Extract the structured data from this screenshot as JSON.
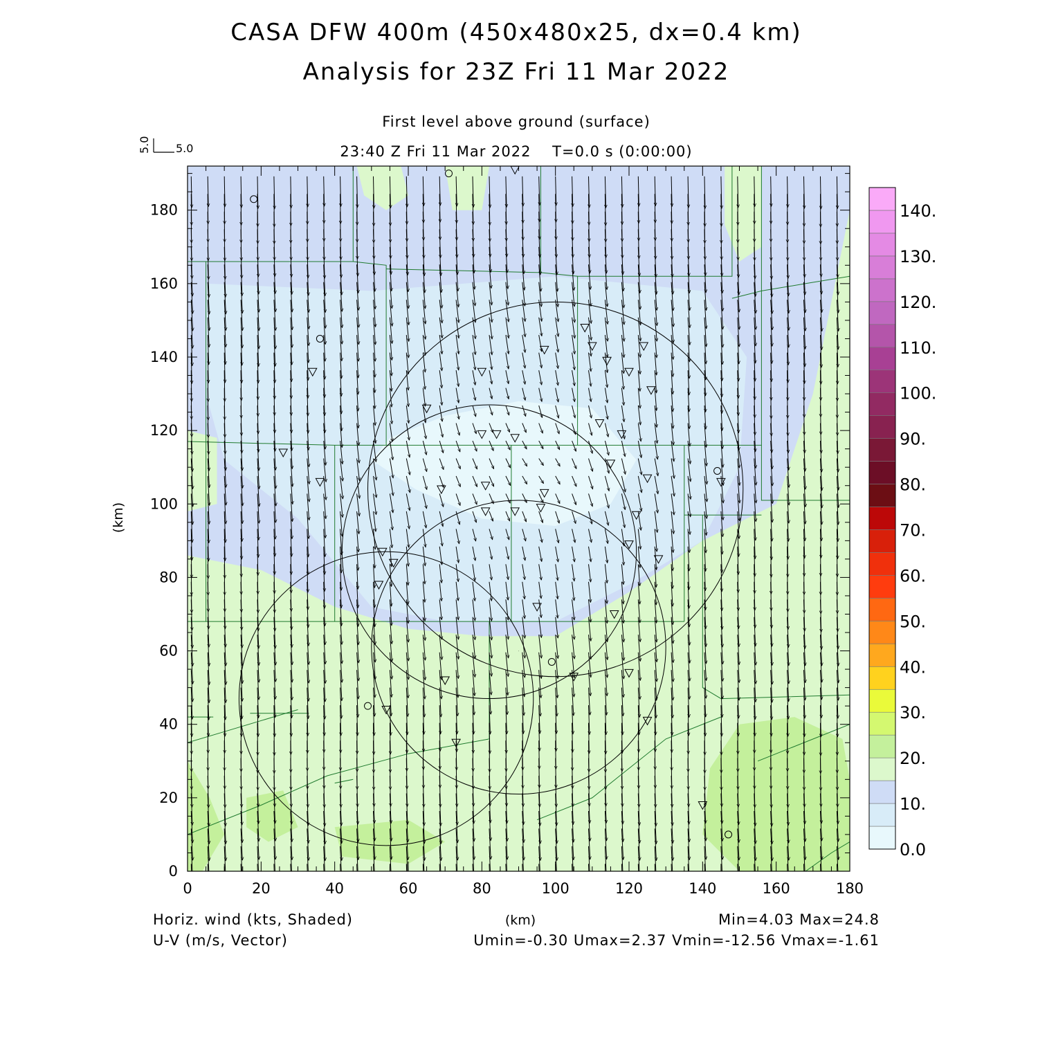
{
  "title_line1": "CASA DFW 400m (450x480x25, dx=0.4 km)",
  "title_line2": "Analysis for 23Z Fri 11 Mar 2022",
  "subtitle_level": "First level above ground (surface)",
  "subtitle_time": "23:40 Z Fri 11 Mar 2022    T=0.0 s (0:00:00)",
  "vector_key": {
    "u_label": "5.0",
    "v_label": "5.0"
  },
  "footer": {
    "left_line1": "Horiz. wind (kts, Shaded)",
    "left_line2": "U-V (m/s, Vector)",
    "xunit": "(km)",
    "minmax": "Min=4.03 Max=24.8",
    "uv_stats": "Umin=-0.30 Umax=2.37 Vmin=-12.56 Vmax=-1.61"
  },
  "colors": {
    "county_lines": "#1f7a2e",
    "radar_rings": "#000000",
    "background": "#ffffff"
  },
  "chart_data": {
    "type": "heatmap",
    "field": "Horiz. wind (kts, Shaded)",
    "vector_field": "U-V (m/s, Vector)",
    "xlabel": "(km)",
    "ylabel": "(km)",
    "xlim": [
      0,
      180
    ],
    "ylim": [
      0,
      192
    ],
    "x_ticks": [
      0,
      20,
      40,
      60,
      80,
      100,
      120,
      140,
      160,
      180
    ],
    "y_ticks": [
      0,
      20,
      40,
      60,
      80,
      100,
      120,
      140,
      160,
      180
    ],
    "stats": {
      "min": 4.03,
      "max": 24.8,
      "umin": -0.3,
      "umax": 2.37,
      "vmin": -12.56,
      "vmax": -1.61
    },
    "colorbar": {
      "labels": [
        "0.0",
        "10.",
        "20.",
        "30.",
        "40.",
        "50.",
        "60.",
        "70.",
        "80.",
        "90.",
        "100.",
        "110.",
        "120.",
        "130.",
        "140."
      ],
      "label_values": [
        0,
        10,
        20,
        30,
        40,
        50,
        60,
        70,
        80,
        90,
        100,
        110,
        120,
        130,
        140
      ],
      "bins": [
        {
          "lo": 0,
          "hi": 5,
          "color": "#e8f8fc"
        },
        {
          "lo": 5,
          "hi": 10,
          "color": "#d8ecf8"
        },
        {
          "lo": 10,
          "hi": 15,
          "color": "#cfdcf6"
        },
        {
          "lo": 15,
          "hi": 20,
          "color": "#dcf8cc"
        },
        {
          "lo": 20,
          "hi": 25,
          "color": "#c4f09c"
        },
        {
          "lo": 25,
          "hi": 30,
          "color": "#d4f870"
        },
        {
          "lo": 30,
          "hi": 35,
          "color": "#eafa3a"
        },
        {
          "lo": 35,
          "hi": 40,
          "color": "#ffd21e"
        },
        {
          "lo": 40,
          "hi": 45,
          "color": "#ffa81e"
        },
        {
          "lo": 45,
          "hi": 50,
          "color": "#ff8818"
        },
        {
          "lo": 50,
          "hi": 55,
          "color": "#ff6812"
        },
        {
          "lo": 55,
          "hi": 60,
          "color": "#ff3c0e"
        },
        {
          "lo": 60,
          "hi": 65,
          "color": "#f0300c"
        },
        {
          "lo": 65,
          "hi": 70,
          "color": "#d8200a"
        },
        {
          "lo": 70,
          "hi": 75,
          "color": "#bc0808"
        },
        {
          "lo": 75,
          "hi": 80,
          "color": "#6c0e14"
        },
        {
          "lo": 80,
          "hi": 85,
          "color": "#6c0e26"
        },
        {
          "lo": 85,
          "hi": 90,
          "color": "#7a1836"
        },
        {
          "lo": 90,
          "hi": 95,
          "color": "#882250"
        },
        {
          "lo": 95,
          "hi": 100,
          "color": "#922a62"
        },
        {
          "lo": 100,
          "hi": 105,
          "color": "#9c3478"
        },
        {
          "lo": 105,
          "hi": 110,
          "color": "#a84094"
        },
        {
          "lo": 110,
          "hi": 115,
          "color": "#b455aa"
        },
        {
          "lo": 115,
          "hi": 120,
          "color": "#c068c0"
        },
        {
          "lo": 120,
          "hi": 125,
          "color": "#cc72cc"
        },
        {
          "lo": 125,
          "hi": 130,
          "color": "#d87ed8"
        },
        {
          "lo": 130,
          "hi": 135,
          "color": "#e48ae4"
        },
        {
          "lo": 135,
          "hi": 140,
          "color": "#f098f0"
        },
        {
          "lo": 140,
          "hi": 145,
          "color": "#faaaf8"
        }
      ]
    },
    "shaded_regions": [
      {
        "level": 10,
        "color": "#cfdcf6",
        "points": [
          [
            0,
            192
          ],
          [
            180,
            192
          ],
          [
            180,
            180
          ],
          [
            176,
            160
          ],
          [
            170,
            130
          ],
          [
            160,
            100
          ],
          [
            140,
            90
          ],
          [
            120,
            76
          ],
          [
            100,
            64
          ],
          [
            80,
            64
          ],
          [
            60,
            66
          ],
          [
            40,
            72
          ],
          [
            20,
            82
          ],
          [
            0,
            86
          ]
        ]
      },
      {
        "level": 5,
        "color": "#d8ecf8",
        "points": [
          [
            5,
            160
          ],
          [
            50,
            158
          ],
          [
            100,
            162
          ],
          [
            140,
            158
          ],
          [
            152,
            140
          ],
          [
            150,
            110
          ],
          [
            140,
            90
          ],
          [
            120,
            78
          ],
          [
            100,
            68
          ],
          [
            70,
            68
          ],
          [
            50,
            72
          ],
          [
            40,
            84
          ],
          [
            30,
            96
          ],
          [
            10,
            112
          ],
          [
            5,
            130
          ]
        ]
      },
      {
        "level": 0,
        "color": "#e8f8fc",
        "points": [
          [
            55,
            118
          ],
          [
            70,
            124
          ],
          [
            90,
            128
          ],
          [
            110,
            126
          ],
          [
            122,
            112
          ],
          [
            115,
            100
          ],
          [
            100,
            94
          ],
          [
            80,
            96
          ],
          [
            62,
            104
          ],
          [
            50,
            112
          ]
        ]
      },
      {
        "level": 15,
        "color": "#dcf8cc",
        "points": [
          [
            46,
            192
          ],
          [
            58,
            192
          ],
          [
            60,
            184
          ],
          [
            54,
            180
          ],
          [
            48,
            184
          ]
        ]
      },
      {
        "level": 15,
        "color": "#dcf8cc",
        "points": [
          [
            70,
            192
          ],
          [
            82,
            192
          ],
          [
            80,
            180
          ],
          [
            72,
            180
          ]
        ]
      },
      {
        "level": 15,
        "color": "#dcf8cc",
        "points": [
          [
            146,
            192
          ],
          [
            156,
            192
          ],
          [
            156,
            170
          ],
          [
            150,
            166
          ],
          [
            146,
            176
          ]
        ]
      },
      {
        "level": 15,
        "color": "#dcf8cc",
        "points": [
          [
            0,
            120
          ],
          [
            8,
            118
          ],
          [
            8,
            100
          ],
          [
            0,
            98
          ]
        ]
      },
      {
        "level": 20,
        "color": "#c4f09c",
        "points": [
          [
            0,
            30
          ],
          [
            6,
            20
          ],
          [
            10,
            10
          ],
          [
            4,
            0
          ],
          [
            0,
            0
          ]
        ]
      },
      {
        "level": 20,
        "color": "#c4f09c",
        "points": [
          [
            150,
            40
          ],
          [
            165,
            42
          ],
          [
            178,
            36
          ],
          [
            180,
            25
          ],
          [
            180,
            0
          ],
          [
            150,
            0
          ],
          [
            140,
            10
          ],
          [
            142,
            28
          ]
        ]
      },
      {
        "level": 20,
        "color": "#c4f09c",
        "points": [
          [
            40,
            12
          ],
          [
            60,
            14
          ],
          [
            70,
            8
          ],
          [
            60,
            2
          ],
          [
            42,
            4
          ]
        ]
      },
      {
        "level": 20,
        "color": "#c4f09c",
        "points": [
          [
            16,
            20
          ],
          [
            26,
            22
          ],
          [
            30,
            12
          ],
          [
            22,
            8
          ],
          [
            16,
            12
          ]
        ]
      }
    ],
    "vector_grid": {
      "x_spacing_km": 4.5,
      "y_spacing_km": 4.8,
      "u_range": [
        -0.3,
        2.37
      ],
      "v_range": [
        -12.56,
        -1.61
      ]
    },
    "county_lines": [
      [
        [
          0,
          166
        ],
        [
          45,
          166
        ],
        [
          54,
          165
        ],
        [
          54,
          116
        ]
      ],
      [
        [
          45,
          192
        ],
        [
          45,
          166
        ]
      ],
      [
        [
          54,
          164
        ],
        [
          96,
          163
        ],
        [
          96,
          192
        ]
      ],
      [
        [
          96,
          163
        ],
        [
          106,
          162
        ],
        [
          106,
          116
        ]
      ],
      [
        [
          106,
          162
        ],
        [
          148,
          162
        ],
        [
          148,
          192
        ]
      ],
      [
        [
          148,
          156
        ],
        [
          156,
          158
        ],
        [
          168,
          160
        ],
        [
          180,
          162
        ]
      ],
      [
        [
          5,
          166
        ],
        [
          5,
          68
        ]
      ],
      [
        [
          0,
          117
        ],
        [
          40,
          116
        ],
        [
          54,
          116
        ],
        [
          88,
          116
        ],
        [
          135,
          116
        ]
      ],
      [
        [
          135,
          116
        ],
        [
          135,
          68
        ]
      ],
      [
        [
          135,
          116
        ],
        [
          156,
          116
        ],
        [
          156,
          192
        ]
      ],
      [
        [
          135,
          97
        ],
        [
          156,
          97
        ]
      ],
      [
        [
          156,
          116
        ],
        [
          156,
          101
        ],
        [
          180,
          101
        ]
      ],
      [
        [
          40,
          116
        ],
        [
          40,
          68
        ]
      ],
      [
        [
          88,
          116
        ],
        [
          88,
          68
        ]
      ],
      [
        [
          0,
          68
        ],
        [
          40,
          68
        ],
        [
          88,
          68
        ],
        [
          135,
          68
        ]
      ],
      [
        [
          82,
          68
        ],
        [
          82,
          36
        ]
      ],
      [
        [
          17,
          43
        ],
        [
          33,
          43
        ]
      ],
      [
        [
          0,
          42
        ],
        [
          7,
          42
        ]
      ],
      [
        [
          140,
          97
        ],
        [
          140,
          50
        ],
        [
          145,
          47
        ],
        [
          180,
          48
        ]
      ],
      [
        [
          0,
          35
        ],
        [
          10,
          38
        ],
        [
          30,
          44
        ]
      ],
      [
        [
          0,
          10
        ],
        [
          20,
          18
        ],
        [
          38,
          26
        ],
        [
          60,
          32
        ],
        [
          82,
          36
        ]
      ],
      [
        [
          95,
          14
        ],
        [
          110,
          20
        ],
        [
          130,
          36
        ],
        [
          145,
          42
        ]
      ],
      [
        [
          155,
          30
        ],
        [
          180,
          40
        ]
      ],
      [
        [
          168,
          0
        ],
        [
          175,
          5
        ],
        [
          180,
          8
        ]
      ],
      [
        [
          40,
          24
        ],
        [
          45,
          25
        ]
      ]
    ],
    "radar_rings": [
      {
        "cx": 100,
        "cy": 104,
        "r": 51
      },
      {
        "cx": 82,
        "cy": 87,
        "r": 40
      },
      {
        "cx": 90,
        "cy": 61,
        "r": 40
      },
      {
        "cx": 54,
        "cy": 47,
        "r": 40
      },
      {
        "cx": 90,
        "cy": 60,
        "r": 0.01
      }
    ],
    "station_triangles": [
      [
        89,
        191
      ],
      [
        34,
        136
      ],
      [
        26,
        114
      ],
      [
        36,
        106
      ],
      [
        65,
        126
      ],
      [
        69,
        104
      ],
      [
        80,
        119
      ],
      [
        84,
        119
      ],
      [
        89,
        118
      ],
      [
        81,
        105
      ],
      [
        97,
        103
      ],
      [
        96,
        99
      ],
      [
        89,
        98
      ],
      [
        81,
        98
      ],
      [
        53,
        87
      ],
      [
        56,
        84
      ],
      [
        52,
        78
      ],
      [
        95,
        72
      ],
      [
        70,
        52
      ],
      [
        54,
        44
      ],
      [
        73,
        35
      ],
      [
        97,
        142
      ],
      [
        108,
        148
      ],
      [
        110,
        143
      ],
      [
        114,
        139
      ],
      [
        124,
        143
      ],
      [
        120,
        136
      ],
      [
        126,
        131
      ],
      [
        112,
        122
      ],
      [
        118,
        119
      ],
      [
        115,
        111
      ],
      [
        125,
        107
      ],
      [
        122,
        97
      ],
      [
        120,
        89
      ],
      [
        128,
        85
      ],
      [
        116,
        70
      ],
      [
        105,
        53
      ],
      [
        120,
        54
      ],
      [
        125,
        41
      ],
      [
        140,
        18
      ],
      [
        145,
        106
      ],
      [
        80,
        136
      ]
    ],
    "station_circles": [
      [
        18,
        183
      ],
      [
        36,
        145
      ],
      [
        71,
        190
      ],
      [
        99,
        57
      ],
      [
        49,
        45
      ],
      [
        144,
        109
      ],
      [
        147,
        10
      ]
    ]
  }
}
